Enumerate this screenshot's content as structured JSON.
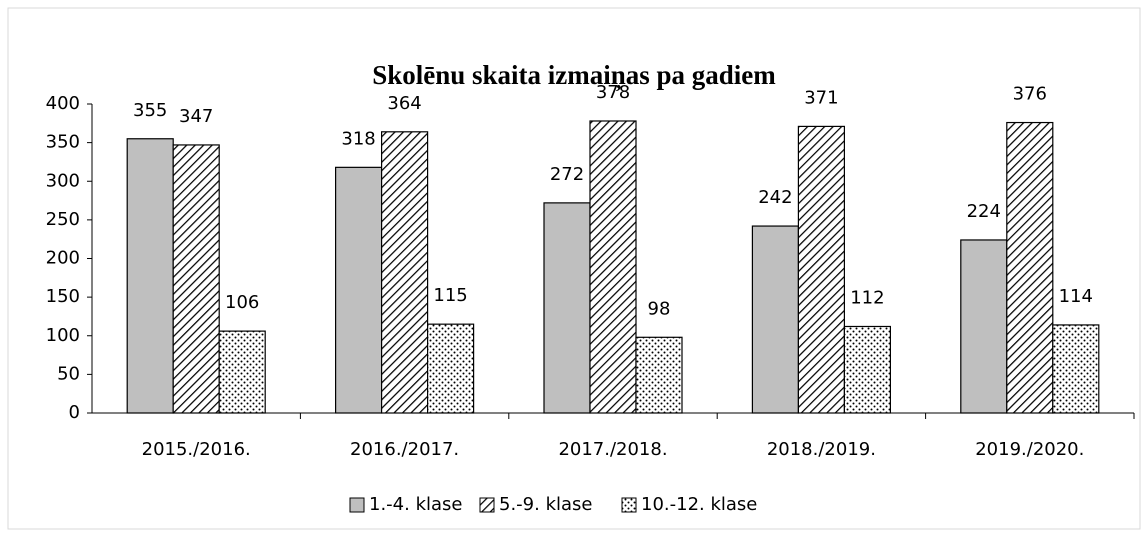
{
  "chart_data": {
    "type": "bar",
    "title": "Skolēnu skaita izmaiņas pa gadiem",
    "categories": [
      "2015./2016.",
      "2016./2017.",
      "2017./2018.",
      "2018./2019.",
      "2019./2020."
    ],
    "series": [
      {
        "name": "1.-4. klase",
        "color": "#bfbfbf",
        "pattern": "solid",
        "values": [
          355,
          318,
          272,
          242,
          224
        ]
      },
      {
        "name": "5.-9. klase",
        "color": "#000000",
        "pattern": "hatch",
        "values": [
          347,
          364,
          378,
          371,
          376
        ]
      },
      {
        "name": "10.-12. klase",
        "color": "#000000",
        "pattern": "dots",
        "values": [
          106,
          115,
          98,
          112,
          114
        ]
      }
    ],
    "ylim": [
      0,
      400
    ],
    "yticks": [
      0,
      50,
      100,
      150,
      200,
      250,
      300,
      350,
      400
    ],
    "grid": false,
    "legend": "bottom",
    "data_labels": true
  }
}
